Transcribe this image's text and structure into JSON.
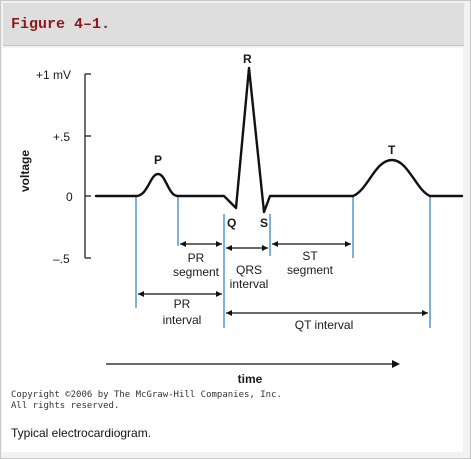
{
  "figure": {
    "title": "Figure 4–1.",
    "axis": {
      "y_label": "voltage",
      "x_label": "time",
      "ticks": [
        "+1 mV",
        "+.5",
        "0",
        "–.5"
      ]
    },
    "waves": {
      "p": "P",
      "q": "Q",
      "r": "R",
      "s": "S",
      "t": "T"
    },
    "intervals": {
      "pr_segment": [
        "PR",
        "segment"
      ],
      "qrs_interval": [
        "QRS",
        "interval"
      ],
      "st_segment": [
        "ST",
        "segment"
      ],
      "pr_interval": [
        "PR",
        "interval"
      ],
      "qt_interval": "QT interval"
    },
    "copyright": "Copyright ©2006 by The McGraw-Hill Companies, Inc.\nAll rights reserved.",
    "caption": "Typical electrocardiogram.",
    "colors": {
      "title_text": "#8b1a1a",
      "marker_lines": "#7fb2d9",
      "trace": "#111111"
    }
  }
}
